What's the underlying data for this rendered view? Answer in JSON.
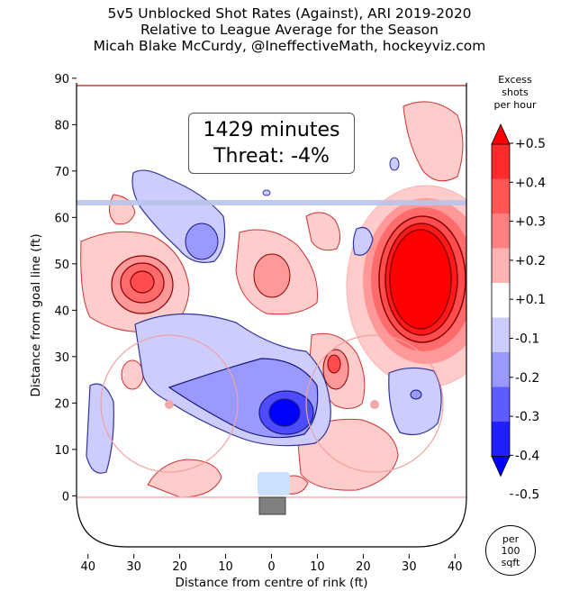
{
  "title": {
    "line1": "5v5 Unblocked Shot Rates (Against), ARI 2019-2020",
    "line2": "Relative to League Average for the Season",
    "line3": "Micah Blake McCurdy, @IneffectiveMath, hockeyviz.com"
  },
  "stat_box": {
    "minutes": "1429 minutes",
    "threat": "Threat: -4%"
  },
  "units": {
    "line1": "per",
    "line2": "100",
    "line3": "sqft"
  },
  "colors": {
    "red_strong": "#ff0000",
    "red_mid": "#ff4d4d",
    "red_light": "#ff9999",
    "red_pale": "#ffcccc",
    "blue_pale": "#ccccff",
    "blue_light": "#9999ff",
    "blue_mid": "#4d4dff",
    "blue_strong": "#0000ff",
    "rink_line": "#f2a0a0",
    "blue_line": "#b8c4ec"
  },
  "chart_data": {
    "type": "heatmap",
    "title": "5v5 Unblocked Shot Rates (Against), ARI 2019-2020",
    "xlabel": "Distance from centre of rink (ft)",
    "ylabel": "Distance from goal line (ft)",
    "xlim": [
      -42.5,
      42.5
    ],
    "ylim": [
      -11,
      89
    ],
    "xticks": [
      40,
      30,
      20,
      10,
      0,
      10,
      20,
      30,
      40
    ],
    "yticks": [
      0,
      10,
      20,
      30,
      40,
      50,
      60,
      70,
      80,
      90
    ],
    "colorbar": {
      "title": [
        "Excess",
        "shots",
        "per hour"
      ],
      "levels": [
        0.5,
        0.4,
        0.3,
        0.2,
        0.1,
        -0.1,
        -0.2,
        -0.3,
        -0.4,
        -0.5
      ],
      "level_labels": [
        "+0.5",
        "+0.4",
        "+0.3",
        "+0.2",
        "+0.1",
        "-0.1",
        "-0.2",
        "-0.3",
        "-0.4",
        "-0.5"
      ]
    },
    "regions": [
      {
        "sign": "+",
        "peak": 0.5,
        "x": 33,
        "y": 45,
        "rx": 10,
        "ry": 16
      },
      {
        "sign": "+",
        "peak": 0.3,
        "x": -28,
        "y": 45,
        "rx": 10,
        "ry": 11
      },
      {
        "sign": "+",
        "peak": 0.2,
        "x": -4,
        "y": 46,
        "rx": 7,
        "ry": 12
      },
      {
        "sign": "+",
        "peak": 0.3,
        "x": 13,
        "y": 28,
        "rx": 5,
        "ry": 8
      },
      {
        "sign": "+",
        "peak": 0.1,
        "x": 33,
        "y": 80,
        "rx": 7,
        "ry": 9
      },
      {
        "sign": "+",
        "peak": 0.1,
        "x": 16,
        "y": 10,
        "rx": 13,
        "ry": 9
      },
      {
        "sign": "+",
        "peak": 0.1,
        "x": -20,
        "y": 5,
        "rx": 10,
        "ry": 5
      },
      {
        "sign": "+",
        "peak": 0.1,
        "x": 12,
        "y": 56,
        "rx": 4,
        "ry": 6
      },
      {
        "sign": "-",
        "peak": -0.5,
        "x": 2,
        "y": 19,
        "rx": 5,
        "ry": 4
      },
      {
        "sign": "-",
        "peak": -0.2,
        "x": 0,
        "y": 22,
        "rx": 18,
        "ry": 10
      },
      {
        "sign": "-",
        "peak": -0.2,
        "x": -16,
        "y": 55,
        "rx": 4,
        "ry": 5
      },
      {
        "sign": "-",
        "peak": -0.1,
        "x": 33,
        "y": 20,
        "rx": 8,
        "ry": 9
      },
      {
        "sign": "-",
        "peak": -0.1,
        "x": -38,
        "y": 12,
        "rx": 4,
        "ry": 9
      },
      {
        "sign": "-",
        "peak": -0.1,
        "x": 20,
        "y": 55,
        "rx": 3,
        "ry": 6
      }
    ]
  }
}
